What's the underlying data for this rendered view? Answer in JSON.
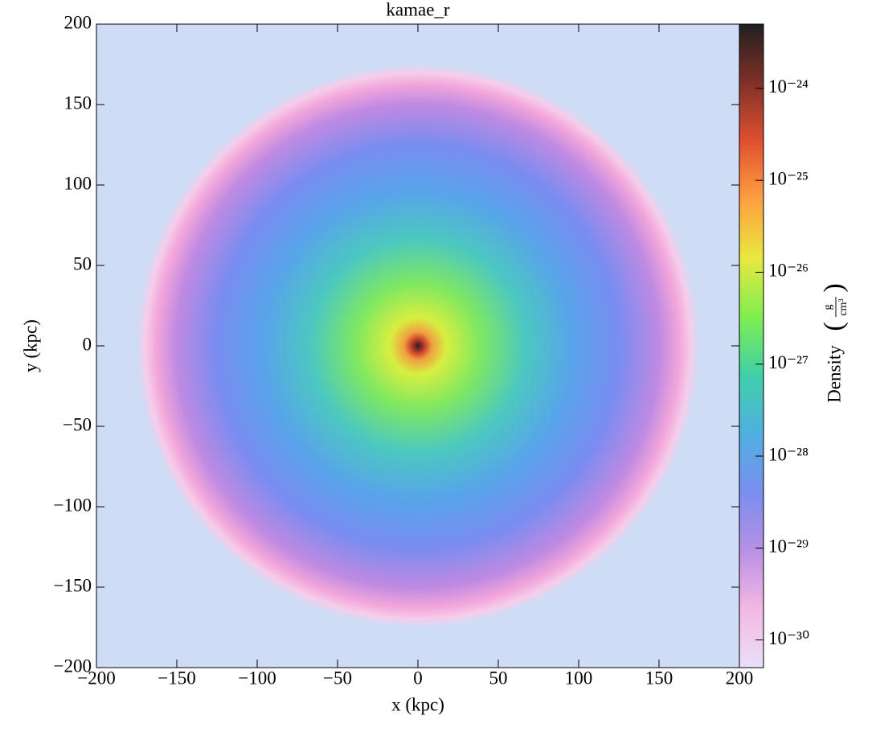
{
  "chart_data": {
    "type": "image",
    "title": "kamae_r",
    "xlabel": "x  (kpc)",
    "ylabel": "y  (kpc)",
    "xlim": [
      -200,
      200
    ],
    "ylim": [
      -200,
      200
    ],
    "xticks": [
      {
        "value": -200,
        "label": "−200"
      },
      {
        "value": -150,
        "label": "−150"
      },
      {
        "value": -100,
        "label": "−100"
      },
      {
        "value": -50,
        "label": "−50"
      },
      0,
      50,
      100,
      150,
      200
    ],
    "yticks": [
      {
        "value": -200,
        "label": "−200"
      },
      {
        "value": -150,
        "label": "−150"
      },
      {
        "value": -100,
        "label": "−100"
      },
      {
        "value": -50,
        "label": "−50"
      },
      0,
      50,
      100,
      150,
      200
    ],
    "colorbar_label": "Density",
    "colorbar_unit": {
      "numerator": "g",
      "denominator": "cm³"
    },
    "colorbar_log": true,
    "clim": [
      5e-31,
      5e-24
    ],
    "cticks": [
      {
        "value": 1e-30,
        "label": "10⁻³⁰"
      },
      {
        "value": 1e-29,
        "label": "10⁻²⁹"
      },
      {
        "value": 1e-28,
        "label": "10⁻²⁸"
      },
      {
        "value": 1e-27,
        "label": "10⁻²⁷"
      },
      {
        "value": 1e-26,
        "label": "10⁻²⁶"
      },
      {
        "value": 1e-25,
        "label": "10⁻²⁵"
      },
      {
        "value": 1e-24,
        "label": "10⁻²⁴"
      }
    ],
    "colormap": [
      "#e8e0f8",
      "#f4b8e4",
      "#b890e4",
      "#7a8ef0",
      "#50b0e0",
      "#40d0a8",
      "#80ee50",
      "#e8e840",
      "#ffa040",
      "#e05030",
      "#803028",
      "#202020"
    ]
  }
}
